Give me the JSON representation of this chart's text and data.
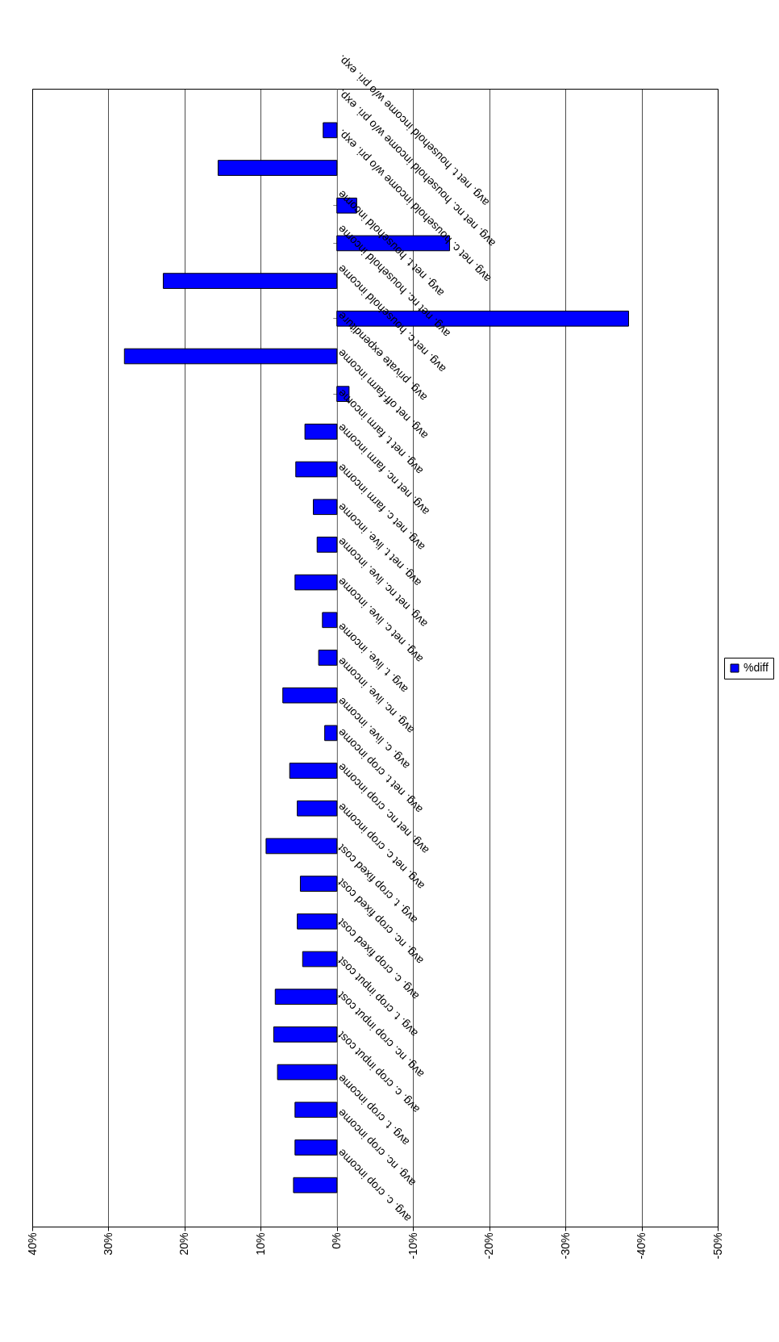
{
  "chart_data": {
    "type": "bar",
    "orientation": "horizontal",
    "categories": [
      "avg. net t. household income w/o pri. exp.",
      "avg. net nc. household income w/o pri. exp.",
      "avg. net c. household income w/o pri. exp.",
      "avg. net t. household income",
      "avg. net nc. household income",
      "avg. net c. household income",
      "avg. private expenditure",
      "avg. net off-farm income",
      "avg. net t. farm income",
      "avg. net nc. farm income",
      "avg. net c. farm income",
      "avg. net t. live. income",
      "avg. net nc. live. income",
      "avg. net c. live. income",
      "avg. t. live. income",
      "avg. nc. live. income",
      "avg. c. live. income",
      "avg. net t. crop income",
      "avg. net nc. crop income",
      "avg. net c. crop income",
      "avg. t. crop fixed cost",
      "avg. nc. crop fixed cost",
      "avg. c. crop fixed cost",
      "avg. t. crop input cost",
      "avg. nc. crop input cost",
      "avg. c. crop input cost",
      "avg. t. crop income",
      "avg. nc. crop income",
      "avg. c. crop income"
    ],
    "series": [
      {
        "name": "%diff",
        "color": "#0000ff",
        "values": [
          1.8,
          15.6,
          -2.6,
          -14.8,
          22.8,
          -38.3,
          27.9,
          -1.6,
          4.2,
          5.4,
          3.1,
          2.6,
          5.5,
          1.9,
          2.4,
          7.1,
          1.6,
          6.2,
          5.2,
          9.3,
          4.8,
          5.2,
          4.5,
          8.1,
          8.3,
          7.8,
          5.5,
          5.5,
          5.7
        ]
      }
    ],
    "xlim": [
      40,
      -50
    ],
    "xticks": [
      {
        "value": 40,
        "label": "40%"
      },
      {
        "value": 30,
        "label": "30%"
      },
      {
        "value": 20,
        "label": "20%"
      },
      {
        "value": 10,
        "label": "10%"
      },
      {
        "value": 0,
        "label": "0%"
      },
      {
        "value": -10,
        "label": "-10%"
      },
      {
        "value": -20,
        "label": "-20%"
      },
      {
        "value": -30,
        "label": "-30%"
      },
      {
        "value": -40,
        "label": "-40%"
      },
      {
        "value": -50,
        "label": "-50%"
      }
    ],
    "grid": "x",
    "legend": "right"
  }
}
